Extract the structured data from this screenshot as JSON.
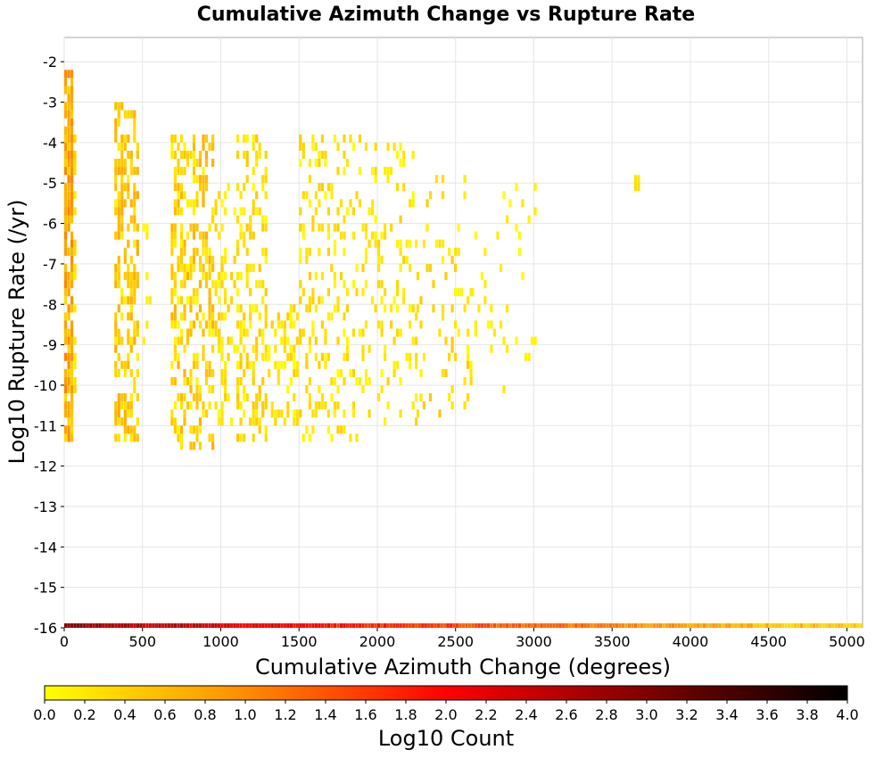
{
  "chart_data": {
    "type": "heatmap",
    "title": "Cumulative Azimuth Change vs Rupture Rate",
    "xlabel": "Cumulative Azimuth Change (degrees)",
    "ylabel": "Log10 Rupture Rate (/yr)",
    "xlim": [
      0,
      5100
    ],
    "ylim": [
      -16,
      -1.4
    ],
    "x_ticks": [
      0,
      500,
      1000,
      1500,
      2000,
      2500,
      3000,
      3500,
      4000,
      4500,
      5000
    ],
    "x_tick_labels": [
      "0",
      "500",
      "1000",
      "1500",
      "2000",
      "2500",
      "3000",
      "3500",
      "4000",
      "4500",
      "5000"
    ],
    "y_ticks": [
      -2,
      -3,
      -4,
      -5,
      -6,
      -7,
      -8,
      -9,
      -10,
      -11,
      -12,
      -13,
      -14,
      -15,
      -16
    ],
    "y_tick_labels": [
      "-2",
      "-3",
      "-4",
      "-5",
      "-6",
      "-7",
      "-8",
      "-9",
      "-10",
      "-11",
      "-12",
      "-13",
      "-14",
      "-15",
      "-16"
    ],
    "grid": true,
    "colorbar": {
      "label": "Log10 Count",
      "range": [
        0,
        4
      ],
      "tick_labels": [
        "0.0",
        "0.2",
        "0.4",
        "0.6",
        "0.8",
        "1.0",
        "1.2",
        "1.4",
        "1.6",
        "1.8",
        "2.0",
        "2.2",
        "2.4",
        "2.6",
        "2.8",
        "3.0",
        "3.2",
        "3.4",
        "3.6",
        "3.8",
        "4.0"
      ],
      "colors": [
        "#ffff00",
        "#ff8c00",
        "#ff0000",
        "#800000",
        "#000000"
      ],
      "orientation": "horizontal"
    },
    "bin_width_x": 20,
    "bin_height_y": 0.2,
    "clusters": [
      {
        "x_range": [
          0,
          60
        ],
        "y_range": [
          -11.4,
          -2.2
        ],
        "density": 0.85,
        "value_range": [
          0.3,
          1.1
        ]
      },
      {
        "x_range": [
          60,
          80
        ],
        "y_range": [
          -10.2,
          -3.8
        ],
        "density": 0.35,
        "value_range": [
          0.1,
          0.4
        ]
      },
      {
        "x_range": [
          320,
          480
        ],
        "y_range": [
          -11.4,
          -3.0
        ],
        "density": 0.55,
        "value_range": [
          0.1,
          0.75
        ]
      },
      {
        "x_range": [
          500,
          560
        ],
        "y_range": [
          -9.4,
          -6.0
        ],
        "density": 0.12,
        "value_range": [
          0.0,
          0.3
        ]
      },
      {
        "x_range": [
          680,
          950
        ],
        "y_range": [
          -11.6,
          -3.8
        ],
        "density": 0.42,
        "value_range": [
          0.05,
          0.7
        ]
      },
      {
        "x_range": [
          960,
          1140
        ],
        "y_range": [
          -11.0,
          -5.0
        ],
        "density": 0.25,
        "value_range": [
          0.0,
          0.45
        ]
      },
      {
        "x_range": [
          1100,
          1300
        ],
        "y_range": [
          -11.4,
          -3.8
        ],
        "density": 0.33,
        "value_range": [
          0.0,
          0.5
        ]
      },
      {
        "x_range": [
          1300,
          1500
        ],
        "y_range": [
          -11.0,
          -8.0
        ],
        "density": 0.3,
        "value_range": [
          0.0,
          0.45
        ]
      },
      {
        "x_range": [
          1500,
          1900
        ],
        "y_range": [
          -11.4,
          -3.8
        ],
        "density": 0.22,
        "value_range": [
          0.0,
          0.45
        ]
      },
      {
        "x_range": [
          1900,
          2250
        ],
        "y_range": [
          -11.0,
          -4.0
        ],
        "density": 0.2,
        "value_range": [
          0.0,
          0.4
        ]
      },
      {
        "x_range": [
          2250,
          2600
        ],
        "y_range": [
          -10.8,
          -4.6
        ],
        "density": 0.13,
        "value_range": [
          0.0,
          0.5
        ]
      },
      {
        "x_range": [
          2600,
          3020
        ],
        "y_range": [
          -10.2,
          -4.8
        ],
        "density": 0.06,
        "value_range": [
          0.0,
          0.2
        ]
      },
      {
        "x_range": [
          3640,
          3680
        ],
        "y_range": [
          -5.2,
          -4.8
        ],
        "density": 1.0,
        "value_range": [
          0.2,
          0.3
        ]
      }
    ],
    "bottom_row": {
      "y": -16,
      "x_range": [
        0,
        5100
      ],
      "value_range": [
        0.3,
        2.8
      ]
    }
  }
}
